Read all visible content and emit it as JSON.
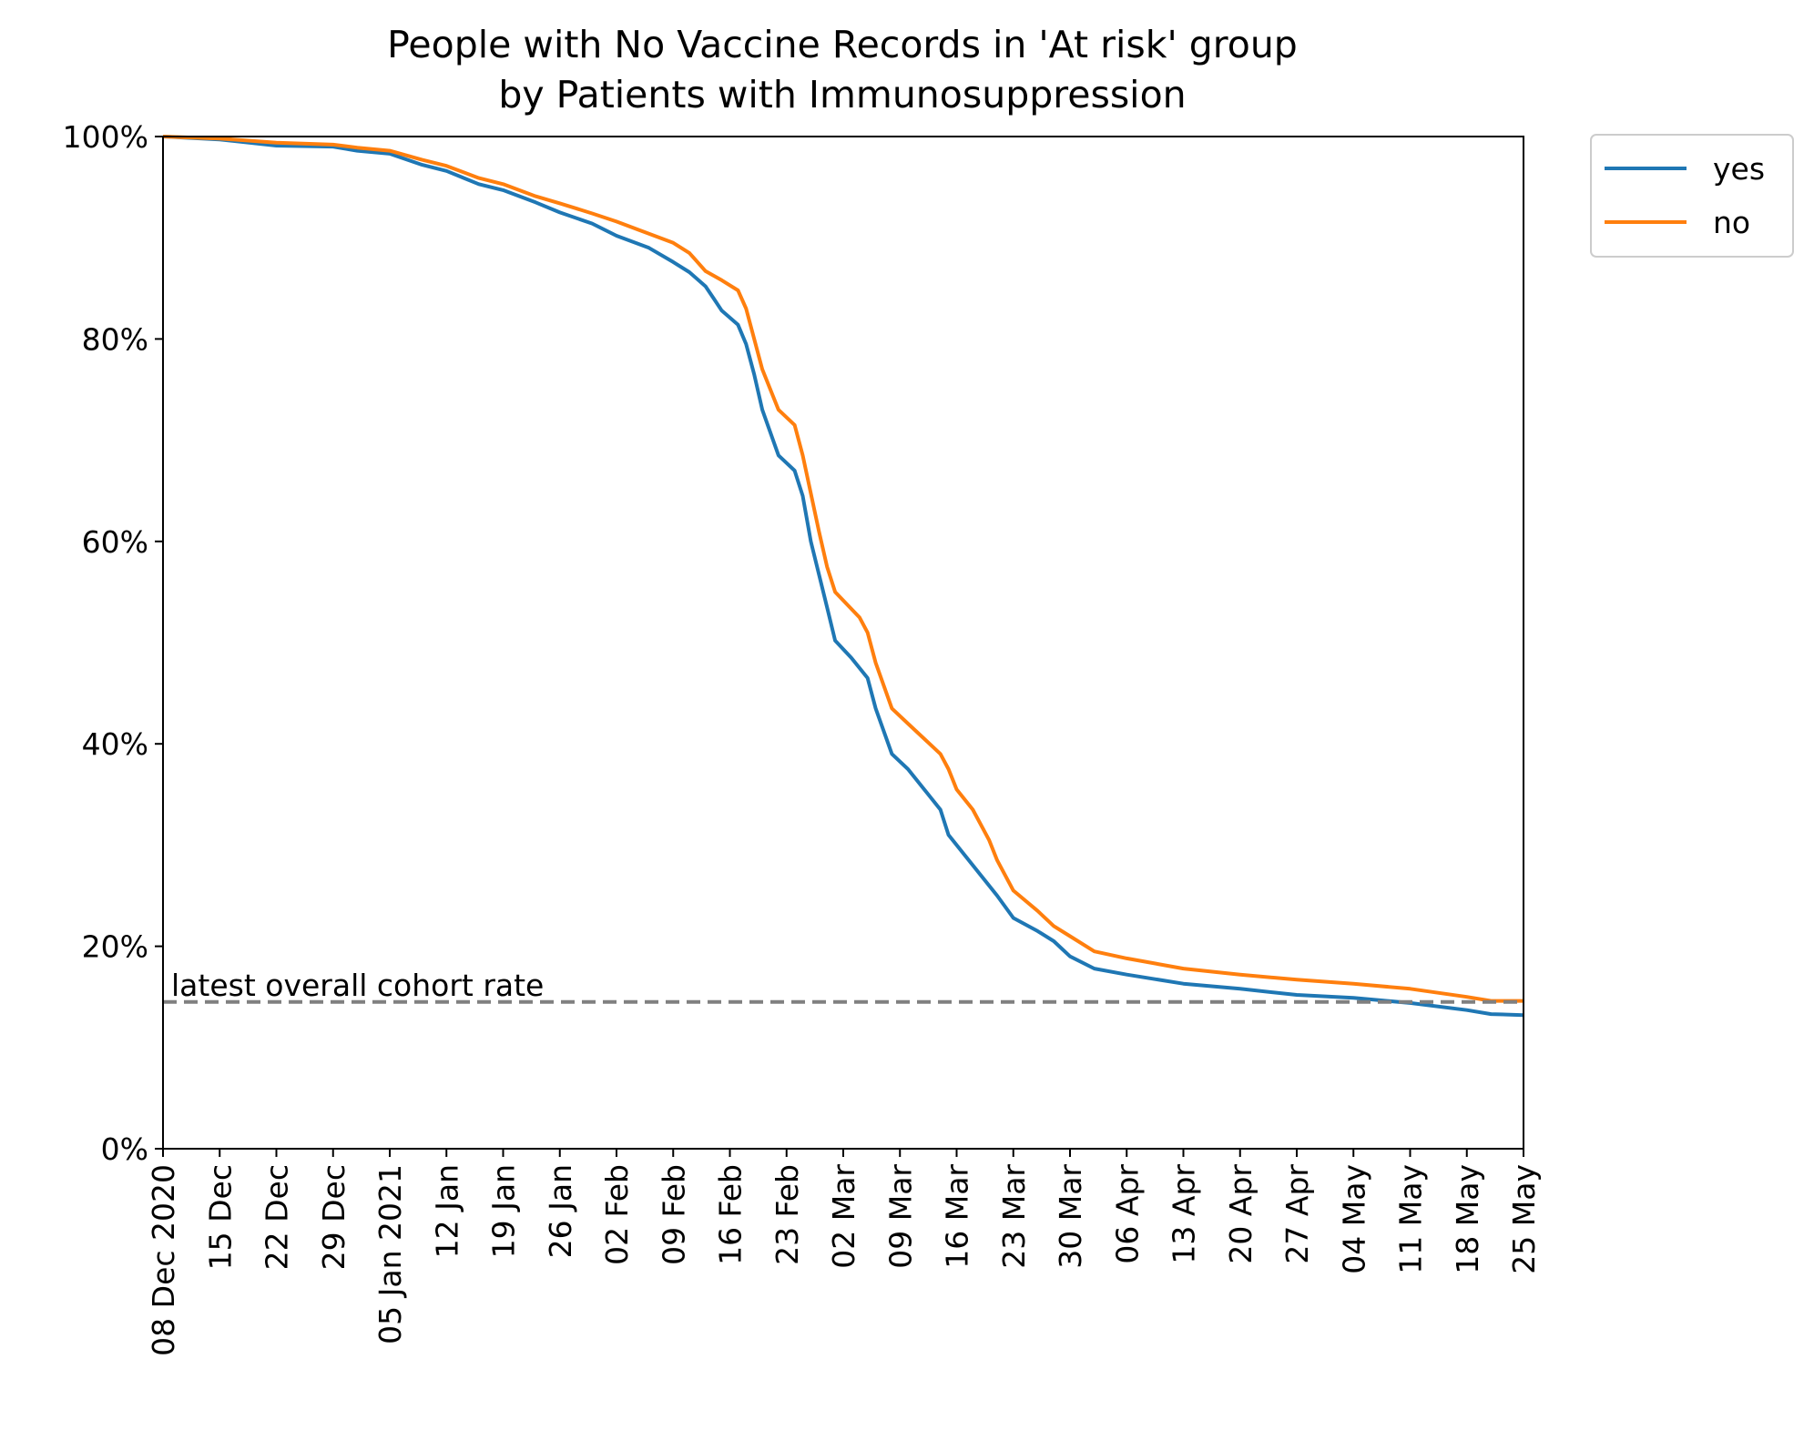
{
  "chart_data": {
    "type": "line",
    "title": "People with No Vaccine Records in 'At risk' group",
    "subtitle": "by Patients with Immunosuppression",
    "xlabel": "",
    "ylabel": "",
    "x_start": "2020-12-08",
    "x_end": "2021-05-25",
    "xlim": [
      "2020-12-08",
      "2021-05-25"
    ],
    "ylim": [
      0,
      100
    ],
    "grid": false,
    "legend_position": "outside upper right",
    "x_ticks": [
      {
        "date": "2020-12-08",
        "label": "08 Dec 2020"
      },
      {
        "date": "2020-12-15",
        "label": "15 Dec"
      },
      {
        "date": "2020-12-22",
        "label": "22 Dec"
      },
      {
        "date": "2020-12-29",
        "label": "29 Dec"
      },
      {
        "date": "2021-01-05",
        "label": "05 Jan 2021"
      },
      {
        "date": "2021-01-12",
        "label": "12 Jan"
      },
      {
        "date": "2021-01-19",
        "label": "19 Jan"
      },
      {
        "date": "2021-01-26",
        "label": "26 Jan"
      },
      {
        "date": "2021-02-02",
        "label": "02 Feb"
      },
      {
        "date": "2021-02-09",
        "label": "09 Feb"
      },
      {
        "date": "2021-02-16",
        "label": "16 Feb"
      },
      {
        "date": "2021-02-23",
        "label": "23 Feb"
      },
      {
        "date": "2021-03-02",
        "label": "02 Mar"
      },
      {
        "date": "2021-03-09",
        "label": "09 Mar"
      },
      {
        "date": "2021-03-16",
        "label": "16 Mar"
      },
      {
        "date": "2021-03-23",
        "label": "23 Mar"
      },
      {
        "date": "2021-03-30",
        "label": "30 Mar"
      },
      {
        "date": "2021-04-06",
        "label": "06 Apr"
      },
      {
        "date": "2021-04-13",
        "label": "13 Apr"
      },
      {
        "date": "2021-04-20",
        "label": "20 Apr"
      },
      {
        "date": "2021-04-27",
        "label": "27 Apr"
      },
      {
        "date": "2021-05-04",
        "label": "04 May"
      },
      {
        "date": "2021-05-11",
        "label": "11 May"
      },
      {
        "date": "2021-05-18",
        "label": "18 May"
      },
      {
        "date": "2021-05-25",
        "label": "25 May"
      }
    ],
    "y_ticks": [
      {
        "value": 0,
        "label": "0%"
      },
      {
        "value": 20,
        "label": "20%"
      },
      {
        "value": 40,
        "label": "40%"
      },
      {
        "value": 60,
        "label": "60%"
      },
      {
        "value": 80,
        "label": "80%"
      },
      {
        "value": 100,
        "label": "100%"
      }
    ],
    "series": [
      {
        "name": "yes",
        "color": "#1f77b4",
        "points": [
          [
            "2020-12-08",
            100
          ],
          [
            "2020-12-15",
            99.7
          ],
          [
            "2020-12-22",
            99.1
          ],
          [
            "2020-12-29",
            99.0
          ],
          [
            "2021-01-01",
            98.6
          ],
          [
            "2021-01-05",
            98.3
          ],
          [
            "2021-01-09",
            97.2
          ],
          [
            "2021-01-12",
            96.6
          ],
          [
            "2021-01-16",
            95.3
          ],
          [
            "2021-01-19",
            94.7
          ],
          [
            "2021-01-23",
            93.5
          ],
          [
            "2021-01-26",
            92.5
          ],
          [
            "2021-01-30",
            91.4
          ],
          [
            "2021-02-02",
            90.2
          ],
          [
            "2021-02-06",
            89.0
          ],
          [
            "2021-02-09",
            87.6
          ],
          [
            "2021-02-11",
            86.6
          ],
          [
            "2021-02-13",
            85.2
          ],
          [
            "2021-02-14",
            84.0
          ],
          [
            "2021-02-15",
            82.8
          ],
          [
            "2021-02-17",
            81.4
          ],
          [
            "2021-02-18",
            79.5
          ],
          [
            "2021-02-19",
            76.5
          ],
          [
            "2021-02-20",
            73.0
          ],
          [
            "2021-02-22",
            68.5
          ],
          [
            "2021-02-24",
            67.0
          ],
          [
            "2021-02-25",
            64.5
          ],
          [
            "2021-02-26",
            60.0
          ],
          [
            "2021-02-28",
            53.5
          ],
          [
            "2021-03-01",
            50.2
          ],
          [
            "2021-03-03",
            48.5
          ],
          [
            "2021-03-05",
            46.5
          ],
          [
            "2021-03-06",
            43.5
          ],
          [
            "2021-03-08",
            39.0
          ],
          [
            "2021-03-10",
            37.5
          ],
          [
            "2021-03-12",
            35.5
          ],
          [
            "2021-03-14",
            33.5
          ],
          [
            "2021-03-15",
            31.0
          ],
          [
            "2021-03-17",
            29.0
          ],
          [
            "2021-03-19",
            27.0
          ],
          [
            "2021-03-21",
            25.0
          ],
          [
            "2021-03-23",
            22.8
          ],
          [
            "2021-03-26",
            21.5
          ],
          [
            "2021-03-28",
            20.5
          ],
          [
            "2021-03-30",
            19.0
          ],
          [
            "2021-04-02",
            17.8
          ],
          [
            "2021-04-06",
            17.2
          ],
          [
            "2021-04-13",
            16.3
          ],
          [
            "2021-04-20",
            15.8
          ],
          [
            "2021-04-27",
            15.2
          ],
          [
            "2021-05-04",
            14.9
          ],
          [
            "2021-05-11",
            14.4
          ],
          [
            "2021-05-18",
            13.7
          ],
          [
            "2021-05-21",
            13.3
          ],
          [
            "2021-05-25",
            13.2
          ]
        ]
      },
      {
        "name": "no",
        "color": "#ff7f0e",
        "points": [
          [
            "2020-12-08",
            100
          ],
          [
            "2020-12-15",
            99.8
          ],
          [
            "2020-12-22",
            99.4
          ],
          [
            "2020-12-29",
            99.2
          ],
          [
            "2021-01-01",
            98.9
          ],
          [
            "2021-01-05",
            98.6
          ],
          [
            "2021-01-09",
            97.7
          ],
          [
            "2021-01-12",
            97.1
          ],
          [
            "2021-01-16",
            95.9
          ],
          [
            "2021-01-19",
            95.3
          ],
          [
            "2021-01-23",
            94.1
          ],
          [
            "2021-01-26",
            93.4
          ],
          [
            "2021-01-30",
            92.4
          ],
          [
            "2021-02-02",
            91.6
          ],
          [
            "2021-02-06",
            90.4
          ],
          [
            "2021-02-09",
            89.5
          ],
          [
            "2021-02-11",
            88.5
          ],
          [
            "2021-02-13",
            86.7
          ],
          [
            "2021-02-15",
            85.8
          ],
          [
            "2021-02-17",
            84.8
          ],
          [
            "2021-02-18",
            83.0
          ],
          [
            "2021-02-19",
            80.0
          ],
          [
            "2021-02-20",
            77.0
          ],
          [
            "2021-02-22",
            73.0
          ],
          [
            "2021-02-24",
            71.5
          ],
          [
            "2021-02-25",
            68.5
          ],
          [
            "2021-02-27",
            61.0
          ],
          [
            "2021-02-28",
            57.5
          ],
          [
            "2021-03-01",
            55.0
          ],
          [
            "2021-03-04",
            52.5
          ],
          [
            "2021-03-05",
            51.0
          ],
          [
            "2021-03-06",
            48.0
          ],
          [
            "2021-03-08",
            43.5
          ],
          [
            "2021-03-10",
            42.0
          ],
          [
            "2021-03-12",
            40.5
          ],
          [
            "2021-03-14",
            39.0
          ],
          [
            "2021-03-15",
            37.5
          ],
          [
            "2021-03-16",
            35.5
          ],
          [
            "2021-03-18",
            33.5
          ],
          [
            "2021-03-20",
            30.5
          ],
          [
            "2021-03-21",
            28.5
          ],
          [
            "2021-03-23",
            25.5
          ],
          [
            "2021-03-26",
            23.5
          ],
          [
            "2021-03-28",
            22.0
          ],
          [
            "2021-03-30",
            21.0
          ],
          [
            "2021-04-02",
            19.5
          ],
          [
            "2021-04-06",
            18.8
          ],
          [
            "2021-04-13",
            17.8
          ],
          [
            "2021-04-20",
            17.2
          ],
          [
            "2021-04-27",
            16.7
          ],
          [
            "2021-05-04",
            16.3
          ],
          [
            "2021-05-11",
            15.8
          ],
          [
            "2021-05-18",
            15.0
          ],
          [
            "2021-05-21",
            14.6
          ],
          [
            "2021-05-25",
            14.6
          ]
        ]
      }
    ],
    "reference_line": {
      "label": "latest overall cohort rate",
      "value": 14.5,
      "color": "#808080",
      "style": "dashed"
    }
  }
}
